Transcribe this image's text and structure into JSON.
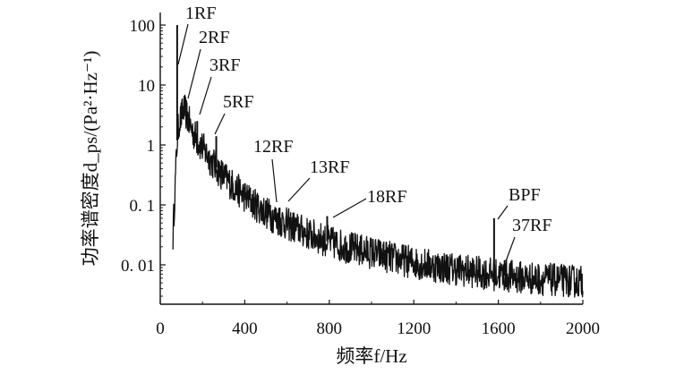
{
  "chart_data": {
    "type": "line",
    "title": "",
    "xlabel": "频率f/Hz",
    "ylabel": "功率谱密度d_ps/(Pa²·Hz⁻¹)",
    "xlim": [
      0,
      2000
    ],
    "ylim": [
      0.003,
      150
    ],
    "yscale": "log",
    "grid": false,
    "legend": "none",
    "x_ticks": [
      0,
      400,
      800,
      1200,
      1600,
      2000
    ],
    "x_tick_labels": [
      "0",
      "400",
      "800",
      "1200",
      "1600",
      "2000"
    ],
    "y_ticks": [
      0.01,
      0.1,
      1,
      10,
      100
    ],
    "y_tick_labels": [
      "0. 01",
      "0. 1",
      "1",
      "10",
      "100"
    ],
    "line_color": "#111111",
    "series": [
      {
        "x": [
          0,
          60,
          75,
          80,
          85,
          90,
          100,
          110,
          120,
          130,
          140,
          150,
          160,
          170,
          180,
          190,
          200,
          220,
          240,
          260,
          280,
          300,
          350,
          400,
          450,
          500,
          550,
          600,
          700,
          800,
          900,
          1000,
          1100,
          1200,
          1300,
          1400,
          1500,
          1600,
          1700,
          1800,
          1900,
          2000
        ],
        "y": [
          0.03,
          0.03,
          0.5,
          1.2,
          1.8,
          2.5,
          3.0,
          4.0,
          3.5,
          2.8,
          2.2,
          1.8,
          1.5,
          1.3,
          1.1,
          1.0,
          0.9,
          0.7,
          0.55,
          0.45,
          0.36,
          0.3,
          0.2,
          0.14,
          0.1,
          0.075,
          0.058,
          0.048,
          0.033,
          0.024,
          0.019,
          0.016,
          0.013,
          0.011,
          0.0095,
          0.0085,
          0.0075,
          0.0068,
          0.0062,
          0.0058,
          0.0055,
          0.0052
        ]
      }
    ],
    "peaks": [
      {
        "label": "1RF",
        "x": 80,
        "y": 100
      },
      {
        "label": "2RF",
        "x": 125,
        "y": 5
      },
      {
        "label": "3RF",
        "x": 175,
        "y": 2.5
      },
      {
        "label": "5RF",
        "x": 265,
        "y": 1.4
      },
      {
        "label": "12RF",
        "x": 520,
        "y": 0.1
      },
      {
        "label": "13RF",
        "x": 565,
        "y": 0.09
      },
      {
        "label": "18RF",
        "x": 790,
        "y": 0.065
      },
      {
        "label": "BPF",
        "x": 1580,
        "y": 0.06
      },
      {
        "label": "37RF",
        "x": 1630,
        "y": 0.012
      }
    ]
  }
}
